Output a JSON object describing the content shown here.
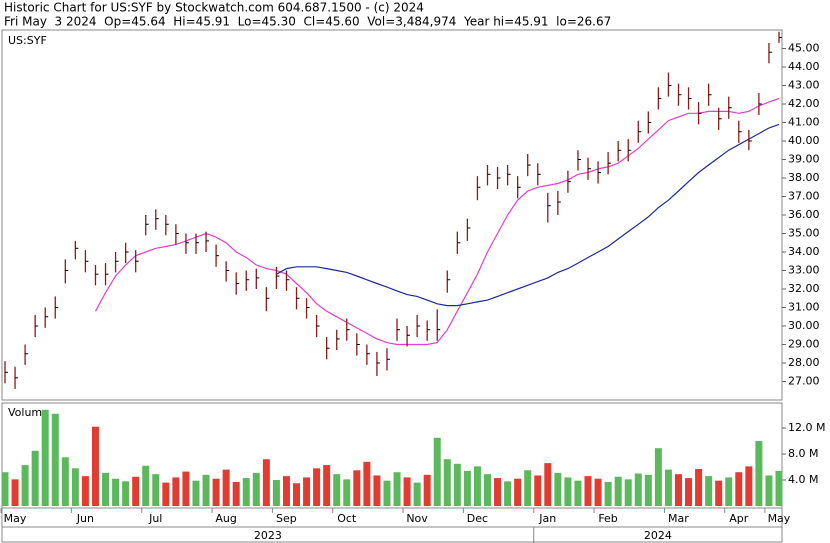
{
  "header": {
    "line1": "Historic Chart for US:SYF by Stockwatch.com 604.687.1500 - (c) 2024",
    "line2": "Fri May  3 2024  Op=45.64  Hi=45.91  Lo=45.30  Cl=45.60  Vol=3,484,974  Year hi=45.91  lo=26.67"
  },
  "chart_data": [
    {
      "type": "ohlc",
      "categories": [
        "May",
        null,
        null,
        null,
        null,
        null,
        null,
        "Jun",
        null,
        null,
        null,
        null,
        null,
        null,
        "Jul",
        null,
        null,
        null,
        null,
        null,
        null,
        "Aug",
        null,
        null,
        null,
        null,
        null,
        "Sep",
        null,
        null,
        null,
        null,
        null,
        "Oct",
        null,
        null,
        null,
        null,
        null,
        null,
        "Nov",
        null,
        null,
        null,
        null,
        null,
        "Dec",
        null,
        null,
        null,
        null,
        null,
        null,
        "Jan",
        null,
        null,
        null,
        null,
        null,
        "Feb",
        null,
        null,
        null,
        null,
        null,
        null,
        "Mar",
        null,
        null,
        null,
        null,
        null,
        "Apr",
        null,
        null,
        null,
        "May",
        null
      ],
      "years": [
        "2023",
        "2024"
      ],
      "series": [
        {
          "name": "US:SYF",
          "color": "#8b1a1a",
          "high": [
            28.1,
            27.8,
            29.0,
            30.6,
            31.0,
            31.6,
            33.6,
            34.6,
            34.1,
            33.3,
            33.4,
            34.0,
            34.5,
            34.1,
            36.0,
            36.3,
            36.0,
            35.5,
            35.0,
            35.0,
            35.1,
            34.4,
            33.5,
            32.9,
            33.0,
            33.1,
            32.1,
            33.2,
            33.0,
            32.1,
            31.5,
            30.6,
            29.4,
            29.8,
            30.4,
            29.6,
            29.0,
            28.6,
            28.8,
            30.4,
            30.0,
            30.6,
            30.3,
            30.9,
            33.0,
            35.1,
            35.8,
            38.1,
            38.7,
            38.6,
            38.7,
            38.1,
            39.3,
            38.8,
            37.2,
            37.3,
            38.4,
            39.5,
            39.1,
            38.9,
            39.4,
            40.0,
            40.1,
            41.1,
            41.6,
            42.9,
            43.7,
            43.1,
            42.9,
            42.1,
            43.1,
            41.8,
            42.4,
            41.1,
            40.6,
            42.6,
            45.3,
            45.91
          ],
          "low": [
            26.9,
            26.6,
            27.9,
            29.4,
            29.9,
            30.4,
            32.3,
            33.6,
            32.9,
            32.2,
            32.2,
            32.9,
            33.4,
            32.9,
            34.9,
            35.2,
            34.9,
            34.4,
            33.9,
            33.9,
            34.0,
            33.2,
            32.4,
            31.7,
            31.9,
            32.0,
            30.8,
            32.0,
            31.9,
            30.9,
            30.4,
            29.4,
            28.2,
            28.7,
            29.2,
            28.4,
            27.9,
            27.3,
            27.6,
            29.2,
            28.9,
            29.4,
            29.2,
            29.2,
            31.8,
            33.9,
            34.6,
            36.8,
            37.6,
            37.4,
            37.6,
            36.9,
            38.1,
            37.6,
            35.6,
            36.0,
            37.2,
            38.4,
            37.9,
            37.7,
            38.2,
            38.9,
            38.9,
            39.9,
            40.4,
            41.7,
            42.4,
            41.9,
            41.7,
            40.9,
            41.9,
            40.6,
            41.2,
            39.9,
            39.5,
            41.4,
            44.2,
            45.3
          ],
          "close": [
            27.5,
            27.2,
            28.5,
            30,
            30.5,
            31,
            33,
            34.2,
            33.5,
            32.8,
            32.8,
            33.5,
            34,
            33.5,
            35.5,
            35.8,
            35.5,
            35,
            34.5,
            34.5,
            34.6,
            33.8,
            33,
            32.3,
            32.5,
            32.6,
            31.5,
            32.7,
            32.5,
            31.5,
            31,
            30,
            28.8,
            29.3,
            29.8,
            29,
            28.5,
            28,
            28.2,
            29.8,
            29.5,
            30,
            29.8,
            29.8,
            32.5,
            34.5,
            35.3,
            37.5,
            38.2,
            38,
            38.2,
            37.5,
            38.7,
            38.2,
            36.5,
            36.7,
            37.8,
            39,
            38.5,
            38.3,
            38.8,
            39.5,
            39.5,
            40.5,
            41,
            42.3,
            43,
            42.5,
            42.3,
            41.5,
            42.5,
            41.2,
            41.8,
            40.5,
            40,
            42,
            44.8,
            45.6
          ]
        }
      ],
      "lines": [
        {
          "color": "#e040d0",
          "values": [
            null,
            null,
            null,
            null,
            null,
            null,
            null,
            null,
            null,
            30.8,
            31.8,
            32.7,
            33.3,
            33.8,
            34,
            34.2,
            34.3,
            34.4,
            34.6,
            34.8,
            35,
            34.8,
            34.5,
            34,
            33.7,
            33.3,
            33.1,
            33,
            32.8,
            32.3,
            31.8,
            31.2,
            30.8,
            30.5,
            30.2,
            29.9,
            29.6,
            29.3,
            29.1,
            29,
            29,
            29,
            29,
            29.1,
            29.8,
            30.8,
            31.8,
            32.8,
            34,
            35,
            36,
            36.8,
            37.3,
            37.5,
            37.6,
            37.7,
            37.9,
            38.2,
            38.3,
            38.5,
            38.6,
            38.8,
            39.2,
            39.6,
            40.1,
            40.6,
            41.1,
            41.3,
            41.5,
            41.5,
            41.6,
            41.6,
            41.6,
            41.5,
            41.6,
            41.9,
            42.1,
            42.3
          ]
        },
        {
          "color": "#1a2a9a",
          "values": [
            null,
            null,
            null,
            null,
            null,
            null,
            null,
            null,
            null,
            null,
            null,
            null,
            null,
            null,
            null,
            null,
            null,
            null,
            null,
            null,
            null,
            null,
            null,
            null,
            null,
            null,
            null,
            32.8,
            33.1,
            33.2,
            33.2,
            33.2,
            33.1,
            33,
            32.9,
            32.7,
            32.5,
            32.3,
            32.1,
            31.9,
            31.7,
            31.6,
            31.4,
            31.2,
            31.1,
            31.1,
            31.2,
            31.3,
            31.4,
            31.6,
            31.8,
            32,
            32.2,
            32.4,
            32.6,
            32.9,
            33.1,
            33.4,
            33.7,
            34,
            34.3,
            34.7,
            35.1,
            35.5,
            35.9,
            36.4,
            36.8,
            37.3,
            37.8,
            38.3,
            38.7,
            39.1,
            39.5,
            39.8,
            40.1,
            40.4,
            40.7,
            40.9
          ]
        }
      ],
      "ylim": [
        26,
        46
      ],
      "yticks": [
        {
          "value": 27,
          "label": "27.00"
        },
        {
          "value": 28,
          "label": "28.00"
        },
        {
          "value": 29,
          "label": "29.00"
        },
        {
          "value": 30,
          "label": "30.00"
        },
        {
          "value": 31,
          "label": "31.00"
        },
        {
          "value": 32,
          "label": "32.00"
        },
        {
          "value": 33,
          "label": "33.00"
        },
        {
          "value": 34,
          "label": "34.00"
        },
        {
          "value": 35,
          "label": "35.00"
        },
        {
          "value": 36,
          "label": "36.00"
        },
        {
          "value": 37,
          "label": "37.00"
        },
        {
          "value": 38,
          "label": "38.00"
        },
        {
          "value": 39,
          "label": "39.00"
        },
        {
          "value": 40,
          "label": "40.00"
        },
        {
          "value": 41,
          "label": "41.00"
        },
        {
          "value": 42,
          "label": "42.00"
        },
        {
          "value": 43,
          "label": "43.00"
        },
        {
          "value": 44,
          "label": "44.00"
        },
        {
          "value": 45,
          "label": "45.00"
        }
      ]
    },
    {
      "type": "bar",
      "title": "Volume",
      "values": [
        5.2,
        4.1,
        6.3,
        8.5,
        14.8,
        14.2,
        7.5,
        5.8,
        4.6,
        12.2,
        5.1,
        4.2,
        3.8,
        4.5,
        6.2,
        4.9,
        3.6,
        4.4,
        5.3,
        3.9,
        4.8,
        4.2,
        5.6,
        3.7,
        4.3,
        5.1,
        7.2,
        4.0,
        4.6,
        3.5,
        4.4,
        5.8,
        6.3,
        4.9,
        4.1,
        5.5,
        6.8,
        4.7,
        3.9,
        5.2,
        4.4,
        3.6,
        4.8,
        10.5,
        7.2,
        6.5,
        5.4,
        6.1,
        4.9,
        4.3,
        3.8,
        4.2,
        5.5,
        4.7,
        6.6,
        5.1,
        4.4,
        3.9,
        4.6,
        4.2,
        3.7,
        4.5,
        4.1,
        5.0,
        4.8,
        8.9,
        5.6,
        4.9,
        4.3,
        5.7,
        4.6,
        3.9,
        4.4,
        5.2,
        6.1,
        10.0,
        4.7,
        5.4
      ],
      "up_color": "#5cb85c",
      "down_color": "#e03c31",
      "ylim": [
        0,
        15.7
      ],
      "yticks": [
        {
          "value": 4,
          "label": "4.0 M"
        },
        {
          "value": 8,
          "label": "8.0 M"
        },
        {
          "value": 12,
          "label": "12.0 M"
        }
      ]
    }
  ]
}
